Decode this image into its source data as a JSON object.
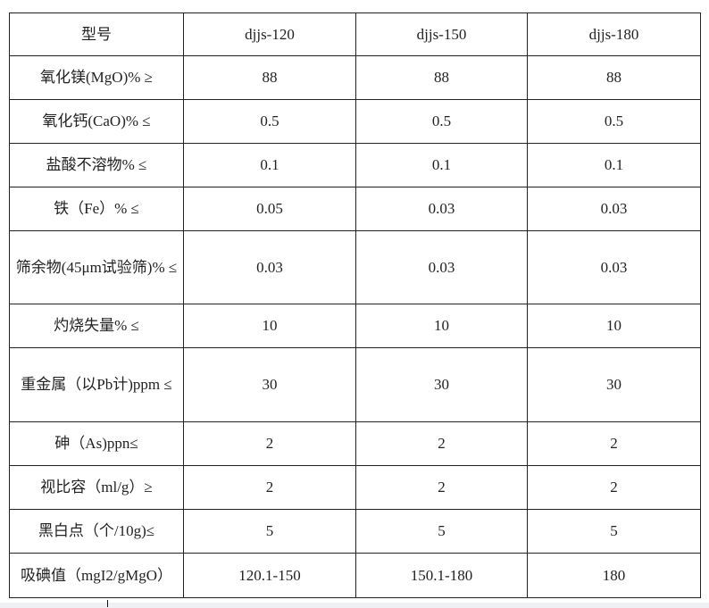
{
  "table": {
    "header": [
      "型号",
      "djjs-120",
      "djjs-150",
      "djjs-180"
    ],
    "rows": [
      {
        "label": "氧化镁(MgO)% ≥",
        "values": [
          "88",
          "88",
          "88"
        ]
      },
      {
        "label": "氧化钙(CaO)% ≤",
        "values": [
          "0.5",
          "0.5",
          "0.5"
        ]
      },
      {
        "label": "盐酸不溶物% ≤",
        "values": [
          "0.1",
          "0.1",
          "0.1"
        ]
      },
      {
        "label": "铁（Fe）% ≤",
        "values": [
          "0.05",
          "0.03",
          "0.03"
        ]
      },
      {
        "label": "筛余物(45μm试验筛)% ≤",
        "values": [
          "0.03",
          "0.03",
          "0.03"
        ]
      },
      {
        "label": "灼烧失量% ≤",
        "values": [
          "10",
          "10",
          "10"
        ]
      },
      {
        "label": "重金属（以Pb计)ppm ≤",
        "values": [
          "30",
          "30",
          "30"
        ]
      },
      {
        "label": "砷（As)ppn≤",
        "values": [
          "2",
          "2",
          "2"
        ]
      },
      {
        "label": "视比容（ml/g）≥",
        "values": [
          "2",
          "2",
          "2"
        ]
      },
      {
        "label": "黑白点（个/10g)≤",
        "values": [
          "5",
          "5",
          "5"
        ]
      },
      {
        "label": "吸碘值（mgI2/gMgO）",
        "values": [
          "120.1-150",
          "150.1-180",
          "180"
        ]
      }
    ]
  }
}
